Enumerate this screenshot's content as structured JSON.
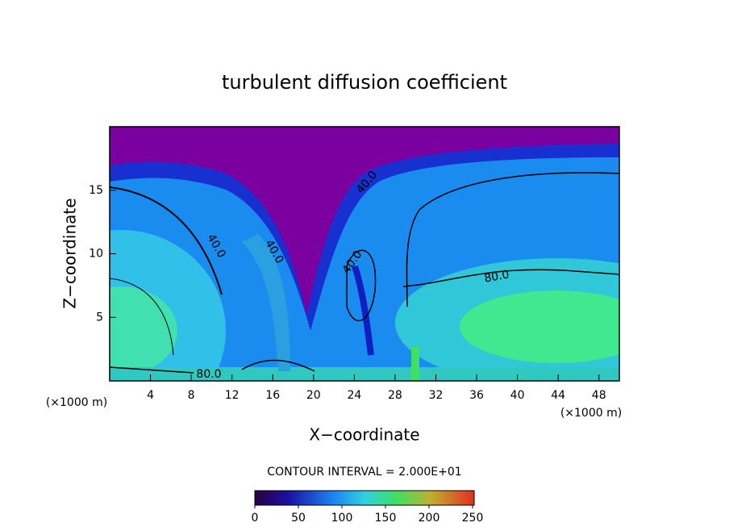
{
  "chart_data": {
    "type": "contour",
    "title": "turbulent diffusion coefficient",
    "x_label": "X−coordinate",
    "y_label": "Z−coordinate",
    "x_unit": "(×1000 m)",
    "y_unit": "(×1000 m)",
    "xlim": [
      0,
      50
    ],
    "xticks": [
      4,
      8,
      12,
      16,
      20,
      24,
      28,
      32,
      36,
      40,
      44,
      48
    ],
    "ylim": [
      0,
      20
    ],
    "yticks": [
      5,
      10,
      15
    ],
    "contour_labels": [
      "40.0",
      "40.0",
      "40.0",
      "40.0",
      "80.0",
      "80.0"
    ],
    "contour_interval_label": "CONTOUR INTERVAL = 2.000E+01",
    "colorbar": {
      "lim": [
        0,
        250
      ],
      "ticks": [
        0,
        50,
        100,
        150,
        200,
        250
      ]
    }
  }
}
